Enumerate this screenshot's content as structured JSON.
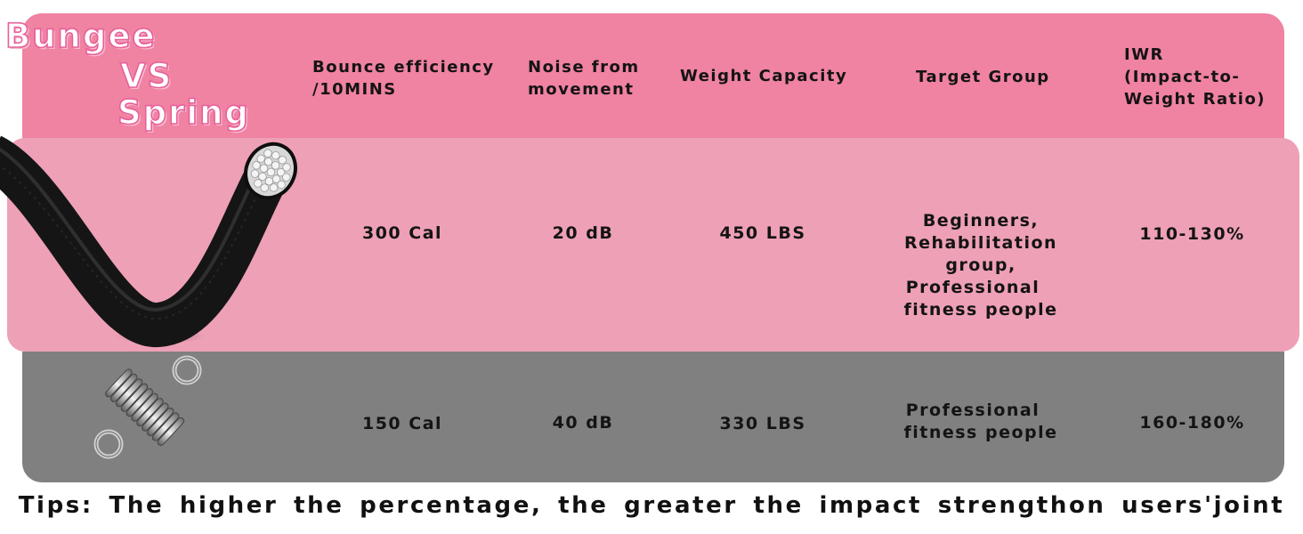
{
  "title": {
    "line1": "Bungee",
    "line2": "VS",
    "line3": "Spring"
  },
  "headers": [
    [
      "Bounce efficiency",
      "/10MINS"
    ],
    [
      "Noise from",
      "movement"
    ],
    [
      "Weight Capacity"
    ],
    [
      "Target Group"
    ],
    [
      "IWR",
      "(Impact-to-",
      "Weight Ratio)"
    ]
  ],
  "rows": [
    {
      "name": "bungee",
      "image": "bungee-cord-image",
      "bounce": "300 Cal",
      "noise": "20 dB",
      "weight": "450 LBS",
      "target": [
        "Beginners,",
        "Rehabilitation group,",
        "Professional",
        "fitness people"
      ],
      "iwr": "110-130%"
    },
    {
      "name": "spring",
      "image": "spring-image",
      "bounce": "150 Cal",
      "noise": "40 dB",
      "weight": "330 LBS",
      "target": [
        "Professional",
        "fitness people"
      ],
      "iwr": "160-180%"
    }
  ],
  "tips": "Tips: The higher the percentage, the greater the impact strengthon users'joint",
  "colors": {
    "header_bg": "#f082a2",
    "bungee_row_bg": "#eea0b6",
    "spring_row_bg": "#808080"
  }
}
